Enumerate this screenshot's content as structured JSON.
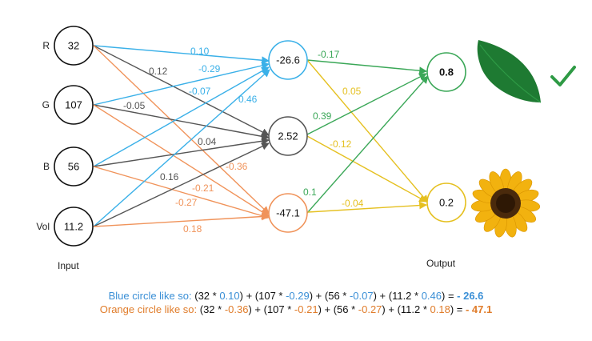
{
  "inputs": [
    {
      "label": "R",
      "value": "32"
    },
    {
      "label": "G",
      "value": "107"
    },
    {
      "label": "B",
      "value": "56"
    },
    {
      "label": "Vol",
      "value": "11.2"
    }
  ],
  "hidden": [
    {
      "value": "-26.6",
      "color": "#3ab0e8"
    },
    {
      "value": "2.52",
      "color": "#555555"
    },
    {
      "value": "-47.1",
      "color": "#f0935a"
    }
  ],
  "outputs": [
    {
      "value": "0.8",
      "color": "#3aa757",
      "bold": true
    },
    {
      "value": "0.2",
      "color": "#e5c020",
      "bold": false
    }
  ],
  "input_weights": [
    {
      "label": "0.10",
      "color": "#3ab0e8"
    },
    {
      "label": "0.12",
      "color": "#555555"
    },
    {
      "label": "-0.29",
      "color": "#3ab0e8"
    },
    {
      "label": "-0.07",
      "color": "#3ab0e8"
    },
    {
      "label": "-0.05",
      "color": "#555555"
    },
    {
      "label": "0.46",
      "color": "#3ab0e8"
    },
    {
      "label": "0.04",
      "color": "#555555"
    },
    {
      "label": "-0.36",
      "color": "#f0935a"
    },
    {
      "label": "0.16",
      "color": "#555555"
    },
    {
      "label": "-0.21",
      "color": "#f0935a"
    },
    {
      "label": "-0.27",
      "color": "#f0935a"
    },
    {
      "label": "0.18",
      "color": "#f0935a"
    }
  ],
  "output_weights": [
    {
      "label": "-0.17",
      "color": "#3aa757"
    },
    {
      "label": "0.05",
      "color": "#e5c020"
    },
    {
      "label": "0.39",
      "color": "#3aa757"
    },
    {
      "label": "-0.12",
      "color": "#e5c020"
    },
    {
      "label": "0.1",
      "color": "#3aa757"
    },
    {
      "label": "-0.04",
      "color": "#e5c020"
    }
  ],
  "labels": {
    "input": "Input",
    "output": "Output"
  },
  "images": {
    "leaf": "leaf-icon",
    "check": "checkmark-icon",
    "sunflower": "sunflower-icon"
  },
  "formulas": {
    "blue": {
      "prefix": "Blue circle like so:",
      "t1a": " (32 * ",
      "w1": "0.10",
      "t1b": ") + (107 * ",
      "w2": "-0.29",
      "t2b": ") + (56 * ",
      "w3": "-0.07",
      "t3b": ") + (11.2 * ",
      "w4": "0.46",
      "t4b": ") = ",
      "result": "- 26.6"
    },
    "orange": {
      "prefix": "Orange circle like so:",
      "t1a": " (32 * ",
      "w1": "-0.36",
      "t1b": ") + (107 * ",
      "w2": "-0.21",
      "t2b": ") + (56 * ",
      "w3": "-0.27",
      "t3b": ") + (11.2 * ",
      "w4": "0.18",
      "t4b": ") = ",
      "result": "- 47.1"
    }
  }
}
